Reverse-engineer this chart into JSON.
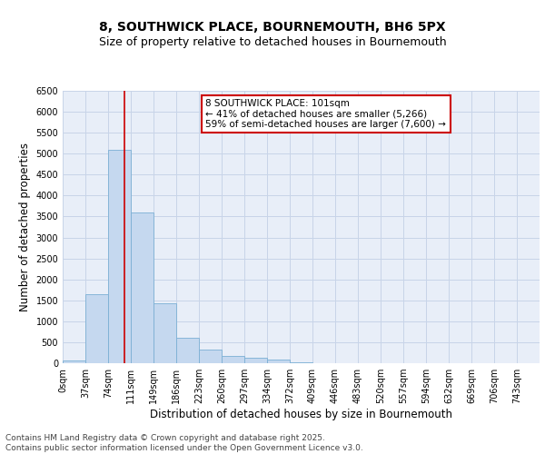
{
  "title_line1": "8, SOUTHWICK PLACE, BOURNEMOUTH, BH6 5PX",
  "title_line2": "Size of property relative to detached houses in Bournemouth",
  "xlabel": "Distribution of detached houses by size in Bournemouth",
  "ylabel": "Number of detached properties",
  "footer_line1": "Contains HM Land Registry data © Crown copyright and database right 2025.",
  "footer_line2": "Contains public sector information licensed under the Open Government Licence v3.0.",
  "annotation_title": "8 SOUTHWICK PLACE: 101sqm",
  "annotation_line2": "← 41% of detached houses are smaller (5,266)",
  "annotation_line3": "59% of semi-detached houses are larger (7,600) →",
  "categories": [
    "0sqm",
    "37sqm",
    "74sqm",
    "111sqm",
    "149sqm",
    "186sqm",
    "223sqm",
    "260sqm",
    "297sqm",
    "334sqm",
    "372sqm",
    "409sqm",
    "446sqm",
    "483sqm",
    "520sqm",
    "557sqm",
    "594sqm",
    "632sqm",
    "669sqm",
    "706sqm",
    "743sqm"
  ],
  "values": [
    60,
    1650,
    5100,
    3600,
    1420,
    600,
    320,
    165,
    120,
    80,
    30,
    10,
    5,
    2,
    1,
    0,
    0,
    0,
    0,
    0,
    0
  ],
  "bar_color": "#c5d8ef",
  "bar_edge_color": "#7bafd4",
  "vline_color": "#cc0000",
  "vline_x": 2.73,
  "annotation_box_color": "#ffffff",
  "annotation_box_edge": "#cc0000",
  "ylim": [
    0,
    6500
  ],
  "yticks": [
    0,
    500,
    1000,
    1500,
    2000,
    2500,
    3000,
    3500,
    4000,
    4500,
    5000,
    5500,
    6000,
    6500
  ],
  "grid_color": "#c8d4e8",
  "bg_color": "#e8eef8",
  "title_fontsize": 10,
  "subtitle_fontsize": 9,
  "tick_fontsize": 7,
  "label_fontsize": 8.5,
  "footer_fontsize": 6.5
}
